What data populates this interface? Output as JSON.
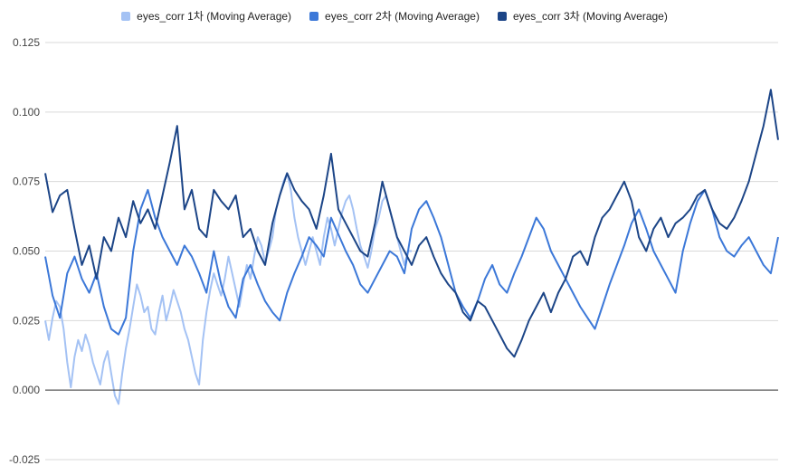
{
  "chart_data": {
    "type": "line",
    "title": "",
    "xlabel": "",
    "ylabel": "",
    "ylim": [
      -0.025,
      0.125
    ],
    "yticks": [
      "-0.025",
      "0.000",
      "0.025",
      "0.050",
      "0.075",
      "0.100",
      "0.125"
    ],
    "grid": true,
    "legend_position": "top",
    "series": [
      {
        "name": "eyes_corr 1차 (Moving Average)",
        "color": "#a4c2f4",
        "x": [
          0,
          2,
          4,
          6,
          8,
          10,
          12,
          14,
          16,
          18,
          20,
          22,
          24,
          26,
          28,
          30,
          32,
          34,
          36,
          38,
          40,
          42,
          44,
          46,
          48,
          50,
          52,
          54,
          56,
          58,
          60,
          62,
          64,
          66,
          68,
          70,
          72,
          74,
          76,
          78,
          80,
          82,
          84,
          86,
          88,
          90,
          92,
          94,
          96,
          98,
          100,
          102,
          104,
          106,
          108,
          110,
          112,
          114,
          116,
          118,
          120,
          122,
          124,
          126,
          128,
          130,
          132,
          134,
          136,
          138,
          140,
          142,
          144,
          146,
          148,
          150,
          152,
          154,
          156,
          158,
          160,
          162,
          164,
          166,
          168,
          170,
          172,
          174,
          176,
          178,
          180,
          182,
          184,
          186,
          188,
          190,
          192,
          194,
          196,
          198,
          200
        ],
        "values": [
          0.025,
          0.018,
          0.026,
          0.032,
          0.03,
          0.022,
          0.01,
          0.001,
          0.012,
          0.018,
          0.014,
          0.02,
          0.016,
          0.01,
          0.006,
          0.002,
          0.01,
          0.014,
          0.006,
          -0.002,
          -0.005,
          0.006,
          0.015,
          0.022,
          0.03,
          0.038,
          0.034,
          0.028,
          0.03,
          0.022,
          0.02,
          0.028,
          0.034,
          0.025,
          0.03,
          0.036,
          0.032,
          0.028,
          0.022,
          0.018,
          0.012,
          0.006,
          0.002,
          0.018,
          0.028,
          0.036,
          0.042,
          0.038,
          0.034,
          0.04,
          0.048,
          0.042,
          0.036,
          0.03,
          0.038,
          0.045,
          0.04,
          0.048,
          0.055,
          0.052,
          0.046,
          0.05,
          0.055,
          0.065,
          0.07,
          0.075,
          0.078,
          0.072,
          0.062,
          0.055,
          0.05,
          0.045,
          0.05,
          0.055,
          0.05,
          0.045,
          0.055,
          0.062,
          0.058,
          0.052,
          0.058,
          0.064,
          0.068,
          0.07,
          0.065,
          0.058,
          0.052,
          0.048,
          0.044,
          0.05,
          0.058,
          0.062,
          0.068,
          0.07,
          0.065,
          0.06,
          0.055,
          0.05,
          0.045,
          0.05,
          0.05
        ]
      },
      {
        "name": "eyes_corr 2차 (Moving Average)",
        "color": "#3c78d8",
        "x": [
          0,
          4,
          8,
          12,
          16,
          20,
          24,
          28,
          32,
          36,
          40,
          44,
          48,
          52,
          56,
          60,
          64,
          68,
          72,
          76,
          80,
          84,
          88,
          92,
          96,
          100,
          104,
          108,
          112,
          116,
          120,
          124,
          128,
          132,
          136,
          140,
          144,
          148,
          152,
          156,
          160,
          164,
          168,
          172,
          176,
          180,
          184,
          188,
          192,
          196,
          200,
          204,
          208,
          212,
          216,
          220,
          224,
          228,
          232,
          236,
          240,
          244,
          248,
          252,
          256,
          260,
          264,
          268,
          272,
          276,
          280,
          284,
          288,
          292,
          296,
          300,
          304,
          308,
          312,
          316,
          320,
          324,
          328,
          332,
          336,
          340,
          344,
          348,
          352,
          356,
          360,
          364,
          368,
          372,
          376,
          380,
          384,
          388,
          392,
          396,
          400
        ],
        "values": [
          0.048,
          0.034,
          0.026,
          0.042,
          0.048,
          0.04,
          0.035,
          0.042,
          0.03,
          0.022,
          0.02,
          0.026,
          0.05,
          0.065,
          0.072,
          0.062,
          0.055,
          0.05,
          0.045,
          0.052,
          0.048,
          0.042,
          0.035,
          0.05,
          0.038,
          0.03,
          0.026,
          0.04,
          0.045,
          0.038,
          0.032,
          0.028,
          0.025,
          0.035,
          0.042,
          0.048,
          0.055,
          0.052,
          0.048,
          0.062,
          0.056,
          0.05,
          0.045,
          0.038,
          0.035,
          0.04,
          0.045,
          0.05,
          0.048,
          0.042,
          0.058,
          0.065,
          0.068,
          0.062,
          0.055,
          0.045,
          0.035,
          0.03,
          0.026,
          0.032,
          0.04,
          0.045,
          0.038,
          0.035,
          0.042,
          0.048,
          0.055,
          0.062,
          0.058,
          0.05,
          0.045,
          0.04,
          0.035,
          0.03,
          0.026,
          0.022,
          0.03,
          0.038,
          0.045,
          0.052,
          0.06,
          0.065,
          0.058,
          0.05,
          0.045,
          0.04,
          0.035,
          0.05,
          0.06,
          0.068,
          0.072,
          0.065,
          0.055,
          0.05,
          0.048,
          0.052,
          0.055,
          0.05,
          0.045,
          0.042,
          0.055
        ]
      },
      {
        "name": "eyes_corr 3차 (Moving Average)",
        "color": "#1c4587",
        "x": [
          0,
          4,
          8,
          12,
          16,
          20,
          24,
          28,
          32,
          36,
          40,
          44,
          48,
          52,
          56,
          60,
          64,
          68,
          72,
          76,
          80,
          84,
          88,
          92,
          96,
          100,
          104,
          108,
          112,
          116,
          120,
          124,
          128,
          132,
          136,
          140,
          144,
          148,
          152,
          156,
          160,
          164,
          168,
          172,
          176,
          180,
          184,
          188,
          192,
          196,
          200,
          204,
          208,
          212,
          216,
          220,
          224,
          228,
          232,
          236,
          240,
          244,
          248,
          252,
          256,
          260,
          264,
          268,
          272,
          276,
          280,
          284,
          288,
          292,
          296,
          300,
          304,
          308,
          312,
          316,
          320,
          324,
          328,
          332,
          336,
          340,
          344,
          348,
          352,
          356,
          360,
          364,
          368,
          372,
          376,
          380,
          384,
          388,
          392,
          396,
          400
        ],
        "values": [
          0.078,
          0.064,
          0.07,
          0.072,
          0.058,
          0.045,
          0.052,
          0.04,
          0.055,
          0.05,
          0.062,
          0.055,
          0.068,
          0.06,
          0.065,
          0.058,
          0.07,
          0.082,
          0.095,
          0.065,
          0.072,
          0.058,
          0.055,
          0.072,
          0.068,
          0.065,
          0.07,
          0.055,
          0.058,
          0.05,
          0.045,
          0.06,
          0.07,
          0.078,
          0.072,
          0.068,
          0.065,
          0.058,
          0.07,
          0.085,
          0.065,
          0.06,
          0.055,
          0.05,
          0.048,
          0.06,
          0.075,
          0.065,
          0.055,
          0.05,
          0.045,
          0.052,
          0.055,
          0.048,
          0.042,
          0.038,
          0.035,
          0.028,
          0.025,
          0.032,
          0.03,
          0.025,
          0.02,
          0.015,
          0.012,
          0.018,
          0.025,
          0.03,
          0.035,
          0.028,
          0.035,
          0.04,
          0.048,
          0.05,
          0.045,
          0.055,
          0.062,
          0.065,
          0.07,
          0.075,
          0.068,
          0.055,
          0.05,
          0.058,
          0.062,
          0.055,
          0.06,
          0.062,
          0.065,
          0.07,
          0.072,
          0.065,
          0.06,
          0.058,
          0.062,
          0.068,
          0.075,
          0.085,
          0.095,
          0.108,
          0.09
        ]
      }
    ]
  }
}
